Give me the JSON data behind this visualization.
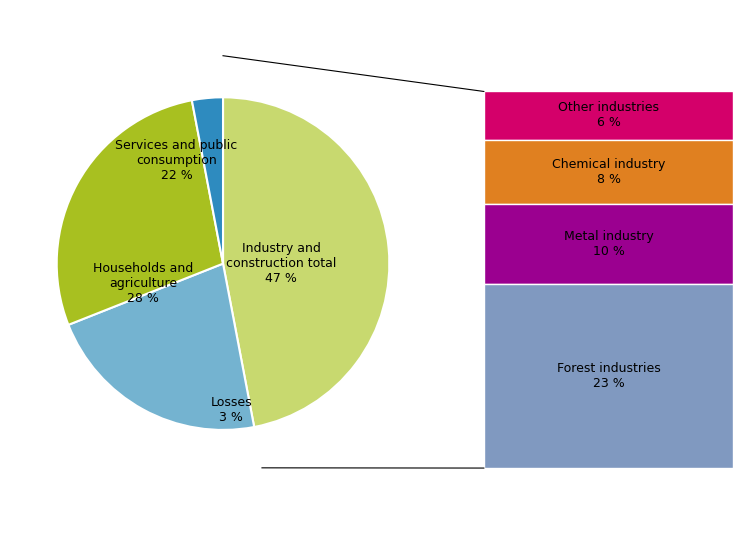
{
  "pie_labels": [
    "Industry and\nconstruction total\n47 %",
    "Services and public\nconsumption\n22 %",
    "Households and\nagriculture\n28 %",
    "Losses\n3 %"
  ],
  "pie_values": [
    47,
    22,
    28,
    3
  ],
  "pie_colors": [
    "#c8d96f",
    "#74b3d0",
    "#a8c020",
    "#2e8bbf"
  ],
  "pie_startangle": 90,
  "bar_labels": [
    "Other industries\n6 %",
    "Chemical industry\n8 %",
    "Metal industry\n10 %",
    "Forest industries\n23 %"
  ],
  "bar_values": [
    6,
    8,
    10,
    23
  ],
  "bar_colors": [
    "#d4006a",
    "#e08020",
    "#9b0090",
    "#8099c0"
  ],
  "background_color": "#ffffff"
}
